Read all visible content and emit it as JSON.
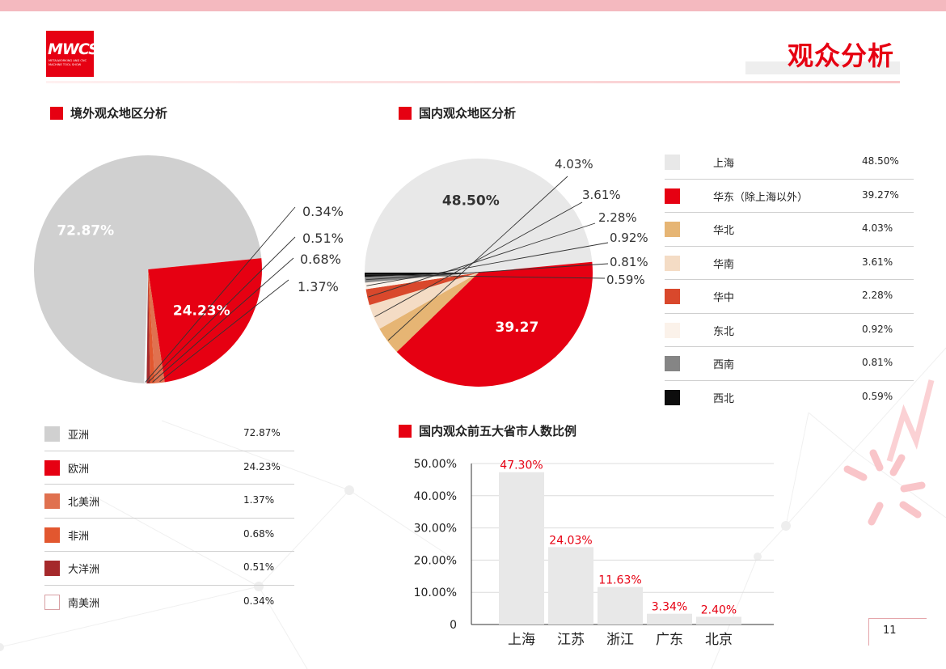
{
  "logo": {
    "main": "MWCS",
    "sub": "METALWORKING AND CNC MACHINE TOOL SHOW"
  },
  "page_title": "观众分析",
  "page_number": "11",
  "colors": {
    "accent": "#e60012",
    "grey": "#d0d0d0",
    "light_grey": "#e8e8e8"
  },
  "sections": {
    "overseas": "境外观众地区分析",
    "domestic": "国内观众地区分析",
    "top5": "国内观众前五大省市人数比例"
  },
  "chart_data": [
    {
      "type": "pie",
      "id": "overseas",
      "title": "境外观众地区分析",
      "slices": [
        {
          "label": "亚洲",
          "value": 72.87,
          "text": "72.87%",
          "color": "#d0d0d0"
        },
        {
          "label": "欧洲",
          "value": 24.23,
          "text": "24.23%",
          "color": "#e60012"
        },
        {
          "label": "北美洲",
          "value": 1.37,
          "text": "1.37%",
          "color": "#e0714f"
        },
        {
          "label": "非洲",
          "value": 0.68,
          "text": "0.68%",
          "color": "#e2572f"
        },
        {
          "label": "大洋洲",
          "value": 0.51,
          "text": "0.51%",
          "color": "#a5292b"
        },
        {
          "label": "南美洲",
          "value": 0.34,
          "text": "0.34%",
          "color": "#ffffff"
        }
      ]
    },
    {
      "type": "pie",
      "id": "domestic",
      "title": "国内观众地区分析",
      "slices": [
        {
          "label": "上海",
          "value": 48.5,
          "text": "48.50%",
          "color": "#e8e8e8"
        },
        {
          "label": "华东（除上海以外）",
          "value": 39.27,
          "text": "39.27%",
          "pie_text": "39.27",
          "color": "#e60012"
        },
        {
          "label": "华北",
          "value": 4.03,
          "text": "4.03%",
          "color": "#e6b574"
        },
        {
          "label": "华南",
          "value": 3.61,
          "text": "3.61%",
          "color": "#f4dcc5"
        },
        {
          "label": "华中",
          "value": 2.28,
          "text": "2.28%",
          "color": "#d9482c"
        },
        {
          "label": "东北",
          "value": 0.92,
          "text": "0.92%",
          "color": "#fbf2ea"
        },
        {
          "label": "西南",
          "value": 0.81,
          "text": "0.81%",
          "color": "#858585"
        },
        {
          "label": "西北",
          "value": 0.59,
          "text": "0.59%",
          "color": "#0d0d0d"
        }
      ]
    },
    {
      "type": "bar",
      "id": "top5",
      "title": "国内观众前五大省市人数比例",
      "categories": [
        "上海",
        "江苏",
        "浙江",
        "广东",
        "北京"
      ],
      "values": [
        47.3,
        24.03,
        11.63,
        3.34,
        2.4
      ],
      "data_labels": [
        "47.30%",
        "24.03%",
        "11.63%",
        "3.34%",
        "2.40%"
      ],
      "yticks": [
        "0",
        "10.00%",
        "20.00%",
        "30.00%",
        "40.00%",
        "50.00%"
      ],
      "ylim": [
        0,
        50
      ],
      "bar_color": "#e8e8e8",
      "label_color": "#e60012",
      "grid": true
    }
  ]
}
